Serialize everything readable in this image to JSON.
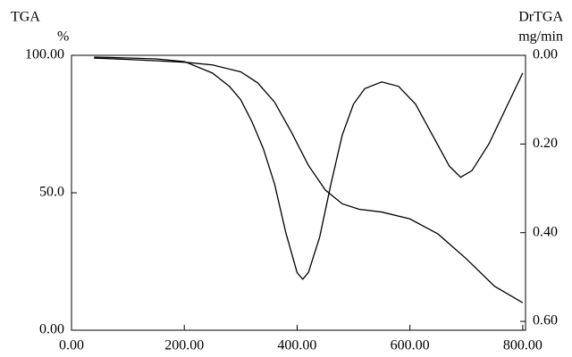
{
  "chart_data": {
    "type": "line",
    "ylabel": "TGA",
    "yunit": "%",
    "y2label": "DrTGA",
    "y2unit": "mg/min",
    "xlim": [
      0,
      805
    ],
    "xticks": [
      {
        "value": 0,
        "label": "0.00"
      },
      {
        "value": 200,
        "label": "200.00"
      },
      {
        "value": 400,
        "label": "400.00"
      },
      {
        "value": 600,
        "label": "600.00"
      },
      {
        "value": 800,
        "label": "800.00"
      }
    ],
    "ylim": [
      0,
      100
    ],
    "yticks": [
      {
        "value": 0,
        "label": "0.00"
      },
      {
        "value": 50,
        "label": "50.0"
      },
      {
        "value": 100,
        "label": "100.00"
      }
    ],
    "y2lim": [
      0.62,
      0
    ],
    "y2ticks": [
      {
        "value": 0,
        "label": "0.00"
      },
      {
        "value": 0.2,
        "label": "0.20"
      },
      {
        "value": 0.4,
        "label": "0.40"
      },
      {
        "value": 0.6,
        "label": "0.60"
      }
    ],
    "series": [
      {
        "color": "#000000",
        "x": [
          40,
          100,
          150,
          200,
          250,
          300,
          330,
          360,
          390,
          420,
          450,
          480,
          510,
          550,
          600,
          650,
          700,
          750,
          800
        ],
        "values": [
          99,
          98.5,
          98,
          97.5,
          96.5,
          94,
          90,
          83,
          72,
          60,
          51,
          46,
          44,
          43,
          40.5,
          35,
          26,
          16,
          10
        ]
      },
      {
        "color": "#000000",
        "axis": "y2",
        "x": [
          40,
          100,
          150,
          200,
          250,
          280,
          300,
          320,
          340,
          360,
          380,
          400,
          410,
          420,
          440,
          460,
          480,
          500,
          520,
          550,
          580,
          610,
          640,
          670,
          690,
          710,
          740,
          770,
          800
        ],
        "values": [
          0.004,
          0.006,
          0.008,
          0.014,
          0.04,
          0.07,
          0.1,
          0.15,
          0.21,
          0.29,
          0.4,
          0.49,
          0.505,
          0.49,
          0.41,
          0.29,
          0.18,
          0.11,
          0.075,
          0.06,
          0.07,
          0.11,
          0.18,
          0.25,
          0.275,
          0.26,
          0.2,
          0.12,
          0.04
        ]
      }
    ]
  }
}
